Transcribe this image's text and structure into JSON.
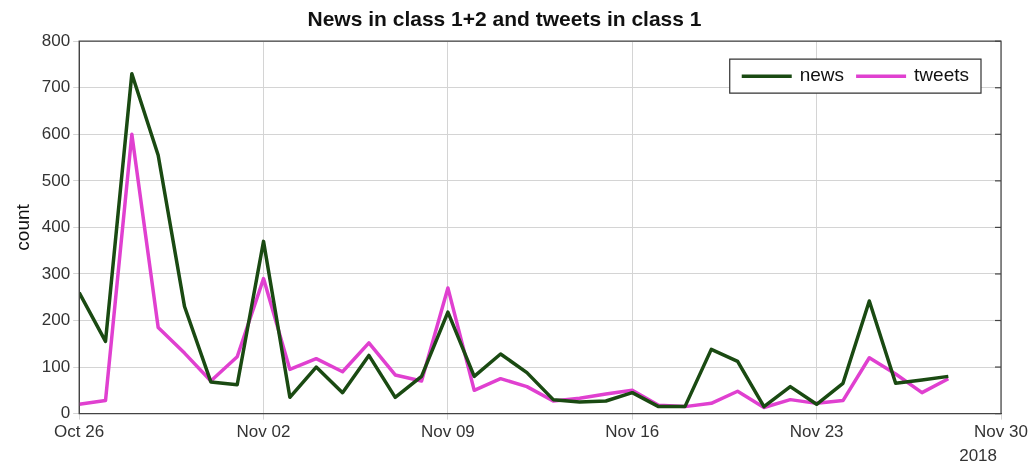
{
  "chart_data": {
    "type": "line",
    "title": "News in class 1+2 and tweets in class 1",
    "ylabel": "count",
    "x": [
      "2018-10-26",
      "2018-10-27",
      "2018-10-28",
      "2018-10-29",
      "2018-10-30",
      "2018-10-31",
      "2018-11-01",
      "2018-11-02",
      "2018-11-03",
      "2018-11-04",
      "2018-11-05",
      "2018-11-06",
      "2018-11-07",
      "2018-11-08",
      "2018-11-09",
      "2018-11-10",
      "2018-11-11",
      "2018-11-12",
      "2018-11-13",
      "2018-11-14",
      "2018-11-15",
      "2018-11-16",
      "2018-11-17",
      "2018-11-18",
      "2018-11-19",
      "2018-11-20",
      "2018-11-21",
      "2018-11-22",
      "2018-11-23",
      "2018-11-24",
      "2018-11-25",
      "2018-11-26",
      "2018-11-27",
      "2018-11-28"
    ],
    "series": [
      {
        "name": "news",
        "color": "#1a4a12",
        "values": [
          260,
          155,
          730,
          555,
          230,
          68,
          62,
          370,
          35,
          100,
          45,
          125,
          35,
          80,
          218,
          80,
          128,
          88,
          30,
          25,
          27,
          45,
          15,
          15,
          138,
          112,
          15,
          58,
          20,
          65,
          242,
          65,
          72,
          80
        ]
      },
      {
        "name": "tweets",
        "color": "#e040d0",
        "values": [
          20,
          28,
          600,
          185,
          130,
          70,
          122,
          290,
          95,
          118,
          90,
          152,
          83,
          70,
          270,
          50,
          75,
          58,
          27,
          33,
          42,
          50,
          18,
          15,
          22,
          48,
          13,
          30,
          22,
          28,
          120,
          85,
          45,
          75
        ]
      }
    ],
    "xlim": [
      "2018-10-26",
      "2018-11-30"
    ],
    "xticks": [
      {
        "value": "2018-10-26",
        "label": "Oct 26"
      },
      {
        "value": "2018-11-02",
        "label": "Nov 02"
      },
      {
        "value": "2018-11-09",
        "label": "Nov 09"
      },
      {
        "value": "2018-11-16",
        "label": "Nov 16"
      },
      {
        "value": "2018-11-23",
        "label": "Nov 23"
      },
      {
        "value": "2018-11-30",
        "label": "Nov 30"
      }
    ],
    "ylim": [
      0,
      800
    ],
    "yticks": [
      0,
      100,
      200,
      300,
      400,
      500,
      600,
      700,
      800
    ],
    "annotations": [
      "2018"
    ],
    "grid": true,
    "legend": "top right",
    "marker": "none",
    "line_style": "solid"
  }
}
